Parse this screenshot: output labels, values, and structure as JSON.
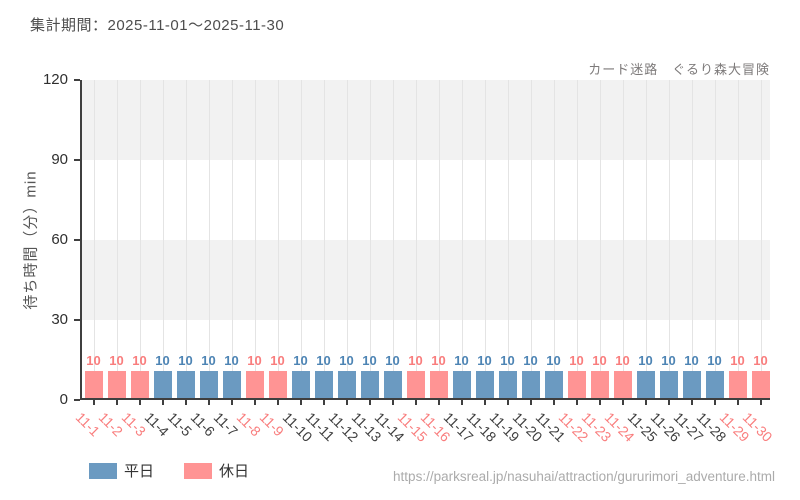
{
  "header": {
    "period_label": "集計期間：2025-11-01～2025-11-30"
  },
  "chart": {
    "title": "カード迷路　ぐるり森大冒険",
    "ylabel": "待ち時間（分）min"
  },
  "legend": {
    "items": [
      {
        "label": "平日",
        "color": "#6b9ac1"
      },
      {
        "label": "休日",
        "color": "#ff9494"
      }
    ]
  },
  "footer": {
    "url": "https://parksreal.jp/nasuhai/attraction/gururimori_adventure.html"
  },
  "chart_data": {
    "type": "bar",
    "title": "カード迷路　ぐるり森大冒険",
    "xlabel": "",
    "ylabel": "待ち時間（分）min",
    "ylim": [
      0,
      120
    ],
    "yticks": [
      0,
      30,
      60,
      90,
      120
    ],
    "grid": "alternating horizontal gray bands every 30 units, light vertical gridline per category",
    "band_gray_color": "#f2f2f2",
    "legend_position": "bottom-left",
    "categories": [
      "11-1",
      "11-2",
      "11-3",
      "11-4",
      "11-5",
      "11-6",
      "11-7",
      "11-8",
      "11-9",
      "11-10",
      "11-11",
      "11-12",
      "11-13",
      "11-14",
      "11-15",
      "11-16",
      "11-17",
      "11-18",
      "11-19",
      "11-20",
      "11-21",
      "11-22",
      "11-23",
      "11-24",
      "11-25",
      "11-26",
      "11-27",
      "11-28",
      "11-29",
      "11-30"
    ],
    "values": [
      10,
      10,
      10,
      10,
      10,
      10,
      10,
      10,
      10,
      10,
      10,
      10,
      10,
      10,
      10,
      10,
      10,
      10,
      10,
      10,
      10,
      10,
      10,
      10,
      10,
      10,
      10,
      10,
      10,
      10
    ],
    "day_types": [
      "休日",
      "休日",
      "休日",
      "平日",
      "平日",
      "平日",
      "平日",
      "休日",
      "休日",
      "平日",
      "平日",
      "平日",
      "平日",
      "平日",
      "休日",
      "休日",
      "平日",
      "平日",
      "平日",
      "平日",
      "平日",
      "休日",
      "休日",
      "休日",
      "平日",
      "平日",
      "平日",
      "平日",
      "休日",
      "休日"
    ],
    "type_styles": {
      "平日": {
        "bar_color": "#6b9ac1",
        "label_color": "#4d84b4",
        "tick_color": "#3d3d3d"
      },
      "休日": {
        "bar_color": "#ff9494",
        "label_color": "#f97d7d",
        "tick_color": "#f97d7d"
      }
    },
    "value_labels_shown": true
  }
}
